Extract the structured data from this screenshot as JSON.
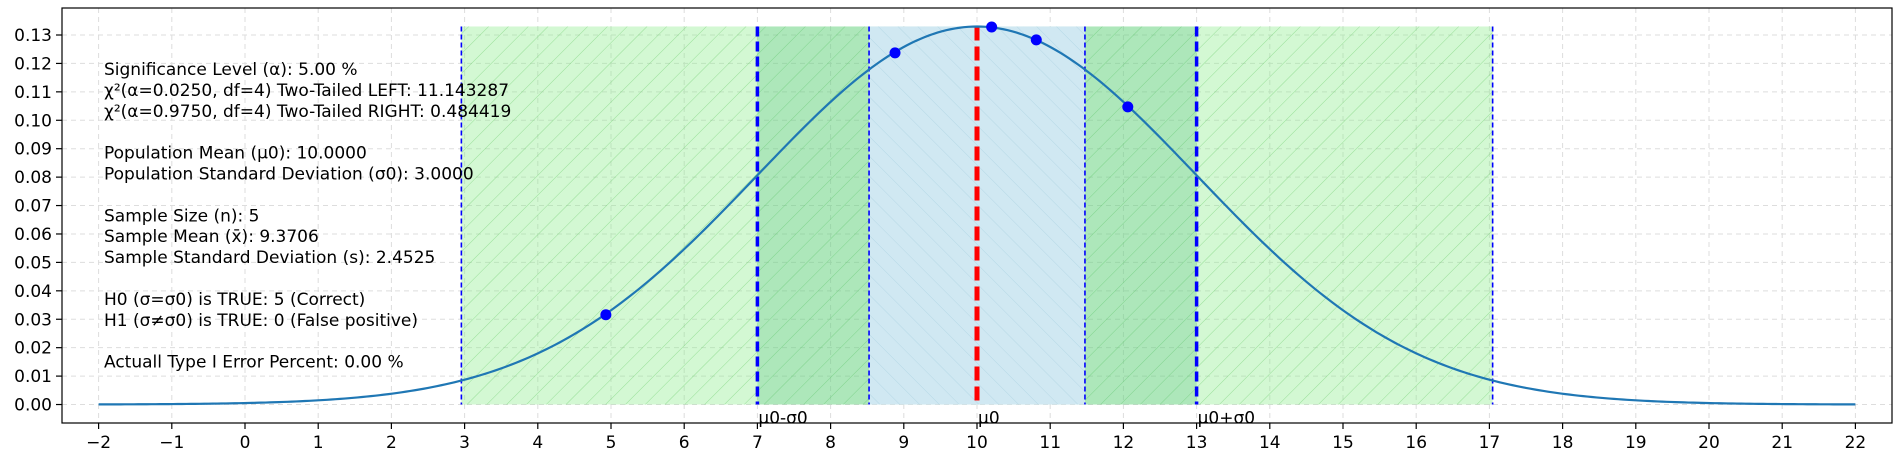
{
  "chart_data": {
    "type": "line",
    "xlim": [
      -2.5,
      22.5
    ],
    "ylim": [
      -0.0065,
      0.1395
    ],
    "grid": true,
    "x_ticks": [
      -2,
      -1,
      0,
      1,
      2,
      3,
      4,
      5,
      6,
      7,
      8,
      9,
      10,
      11,
      12,
      13,
      14,
      15,
      16,
      17,
      18,
      19,
      20,
      21,
      22
    ],
    "x_tick_labels": [
      "−2",
      "−1",
      "0",
      "1",
      "2",
      "3",
      "4",
      "5",
      "6",
      "7",
      "8",
      "9",
      "10",
      "11",
      "12",
      "13",
      "14",
      "15",
      "16",
      "17",
      "18",
      "19",
      "20",
      "21",
      "22"
    ],
    "y_ticks": [
      0,
      0.01,
      0.02,
      0.03,
      0.04,
      0.05,
      0.06,
      0.07,
      0.08,
      0.09,
      0.1,
      0.11,
      0.12,
      0.13
    ],
    "y_tick_labels": [
      "0.00",
      "0.01",
      "0.02",
      "0.03",
      "0.04",
      "0.05",
      "0.06",
      "0.07",
      "0.08",
      "0.09",
      "0.10",
      "0.11",
      "0.12",
      "0.13"
    ],
    "curve": {
      "mean": 10,
      "sd": 3,
      "x_range": [
        -2,
        22
      ],
      "color": "#1f77b4"
    },
    "regions": [
      {
        "name": "outer-acceptance",
        "x0": 2.9558,
        "x1": 17.0442,
        "color": "#90ee90",
        "opacity": 0.4,
        "hatch": "/"
      },
      {
        "name": "inner-band",
        "x0": 7,
        "x1": 13,
        "color": "#3cb371",
        "opacity": 0.25,
        "hatch": ""
      },
      {
        "name": "sample-band",
        "x0": 8.5253,
        "x1": 11.4747,
        "color": "#e0f0f8",
        "opacity": 1.0,
        "hatch": "\\"
      },
      {
        "name": "sample-inner",
        "x0": 8.5253,
        "x1": 11.4747,
        "color": "#add8e6",
        "opacity": 0.3,
        "hatch": ""
      }
    ],
    "region_top": 0.133,
    "thin_lines": [
      2.9558,
      8.5253,
      11.4747,
      17.0442
    ],
    "thick_lines": [
      7,
      13
    ],
    "mean_line": 10,
    "points": [
      {
        "x": 4.93,
        "y": 0.0316
      },
      {
        "x": 8.88,
        "y": 0.1237
      },
      {
        "x": 10.2,
        "y": 0.1328
      },
      {
        "x": 10.81,
        "y": 0.1283
      },
      {
        "x": 12.06,
        "y": 0.1047
      }
    ],
    "marker_labels": [
      {
        "x": 7,
        "text": "μ0-σ0"
      },
      {
        "x": 10,
        "text": "μ0"
      },
      {
        "x": 13,
        "text": "μ0+σ0"
      }
    ],
    "colors": {
      "blue_lines": "#0000ff",
      "mean_line": "#ff0000",
      "points": "#0000ff",
      "grid": "#dddddd"
    }
  },
  "info_lines": [
    "Significance Level (α): 5.00 %",
    "χ²(α=0.0250, df=4) Two-Tailed LEFT: 11.143287",
    "χ²(α=0.9750, df=4) Two-Tailed RIGHT: 0.484419",
    "",
    "Population Mean (μ0): 10.0000",
    "Population Standard Deviation (σ0): 3.0000",
    "",
    "Sample Size (n): 5",
    "Sample Mean (x̄): 9.3706",
    "Sample Standard Deviation (s): 2.4525",
    "",
    "H0 (σ=σ0) is TRUE: 5 (Correct)",
    "H1 (σ≠σ0) is TRUE: 0 (False positive)",
    "",
    "Actuall Type I Error Percent: 0.00 %"
  ]
}
